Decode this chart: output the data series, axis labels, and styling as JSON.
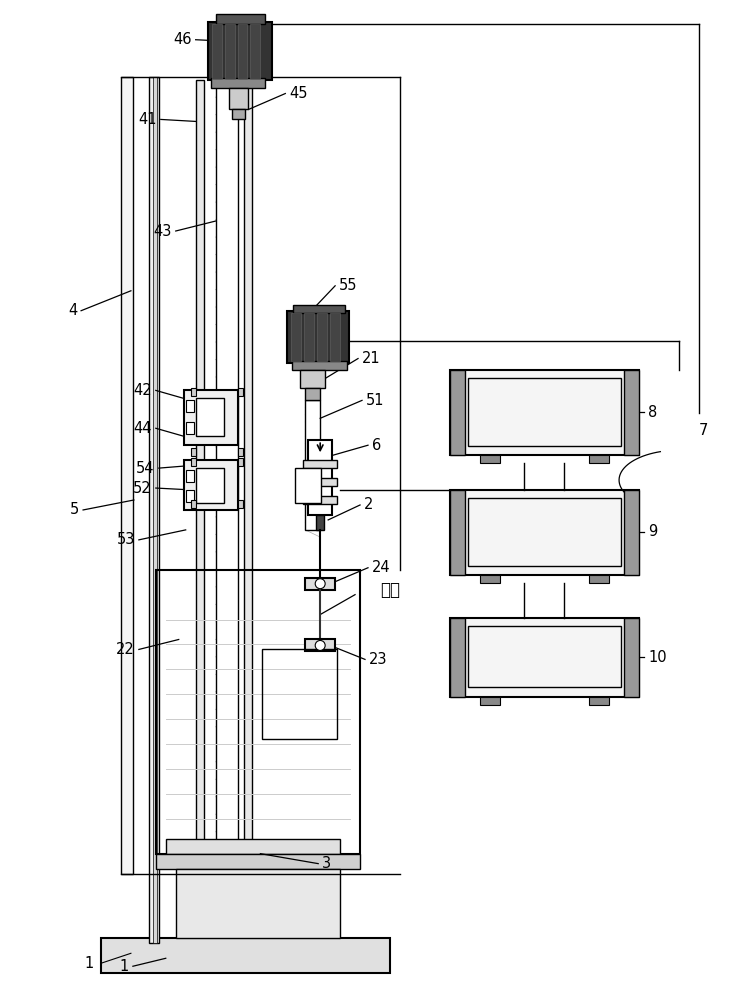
{
  "fig_width": 7.41,
  "fig_height": 10.0,
  "bg_color": "#ffffff",
  "lc": "#000000",
  "chinese_text": "样品",
  "label_fontsize": 10.5
}
